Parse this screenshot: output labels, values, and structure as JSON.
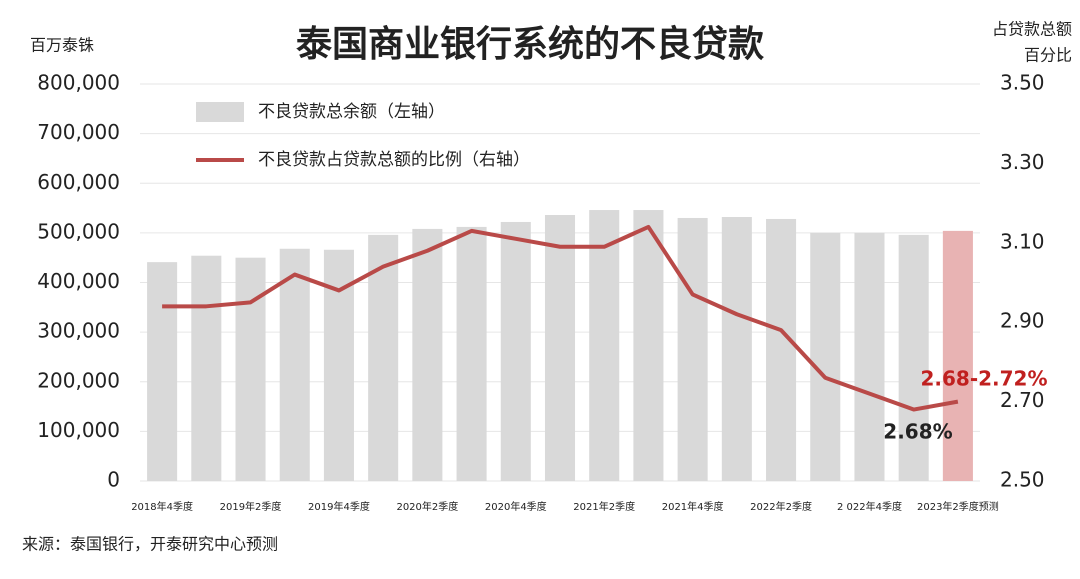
{
  "chart_data": {
    "type": "bar-line",
    "title": "泰国商业银行系统的不良贷款",
    "y_label": "百万泰铢",
    "y2_label": [
      "占贷款总额",
      "百分比"
    ],
    "source": "来源：泰国银行，开泰研究中心预测",
    "categories": [
      "2018年4季度",
      null,
      "2019年2季度",
      null,
      "2019年4季度",
      null,
      "2020年2季度",
      null,
      "2020年4季度",
      null,
      "2021年2季度",
      null,
      "2021年4季度",
      null,
      "2022年2季度",
      null,
      "2 022年4季度",
      null,
      "2023年2季度预测"
    ],
    "series": [
      {
        "name": "不良贷款总余额（左轴）",
        "type": "bar",
        "color": "#d9d9d9",
        "colors": [
          "#d9d9d9",
          "#d9d9d9",
          "#d9d9d9",
          "#d9d9d9",
          "#d9d9d9",
          "#d9d9d9",
          "#d9d9d9",
          "#d9d9d9",
          "#d9d9d9",
          "#d9d9d9",
          "#d9d9d9",
          "#d9d9d9",
          "#d9d9d9",
          "#d9d9d9",
          "#d9d9d9",
          "#d9d9d9",
          "#d9d9d9",
          "#d9d9d9",
          "#e8b3b3"
        ],
        "values": [
          441000,
          454000,
          450000,
          468000,
          466000,
          496000,
          508000,
          512000,
          522000,
          536000,
          546000,
          546000,
          530000,
          532000,
          528000,
          500000,
          500000,
          496000,
          504000
        ]
      },
      {
        "name": "不良贷款占贷款总额的比例（右轴）",
        "type": "line",
        "axis": "y2",
        "color": "#b94a48",
        "values": [
          2.94,
          2.94,
          2.95,
          3.02,
          2.98,
          3.04,
          3.08,
          3.13,
          3.11,
          3.09,
          3.09,
          3.14,
          2.97,
          2.92,
          2.88,
          2.76,
          2.72,
          2.68,
          2.7
        ]
      }
    ],
    "annotations": [
      "2.68%",
      "2.68-2.72%"
    ],
    "ylim": [
      0,
      800000
    ],
    "yticks": [
      0,
      {
        "value": 100000,
        "label": "100,000"
      },
      {
        "value": 200000,
        "label": "200,000"
      },
      {
        "value": 300000,
        "label": "300,000"
      },
      {
        "value": 400000,
        "label": "400,000"
      },
      {
        "value": 500000,
        "label": "500,000"
      },
      {
        "value": 600000,
        "label": "600,000"
      },
      {
        "value": 700000,
        "label": "700,000"
      },
      {
        "value": 800000,
        "label": "800,000"
      }
    ],
    "y2lim": [
      2.5,
      3.5
    ],
    "y2ticks": [
      {
        "value": 2.5,
        "label": "2.50"
      },
      {
        "value": 2.7,
        "label": "2.70"
      },
      {
        "value": 2.9,
        "label": "2.90"
      },
      {
        "value": 3.1,
        "label": "3.10"
      },
      {
        "value": 3.3,
        "label": "3.30"
      },
      {
        "value": 3.5,
        "label": "3.50"
      }
    ],
    "grid": true,
    "legend": "top-left"
  }
}
